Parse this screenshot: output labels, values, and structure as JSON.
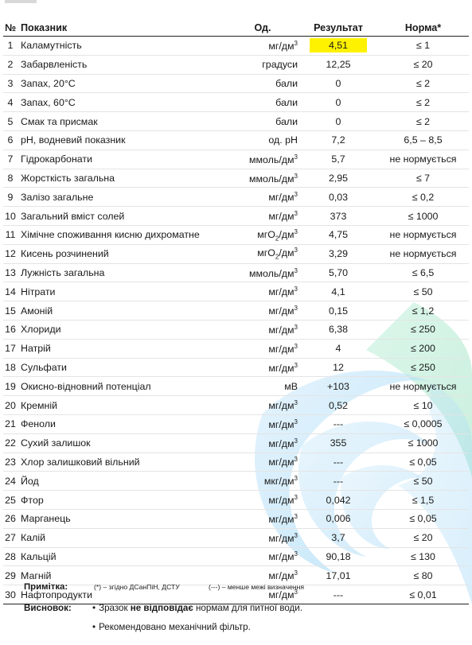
{
  "headers": {
    "no": "№",
    "name": "Показник",
    "unit": "Од.",
    "result": "Результат",
    "norm": "Норма*"
  },
  "rows": [
    {
      "no": "1",
      "name": "Каламутність",
      "unit": "мг/дм",
      "sup": "3",
      "sub": "",
      "result": "4,51",
      "norm": "≤ 1",
      "flag": true
    },
    {
      "no": "2",
      "name": "Забарвленість",
      "unit": "градуси",
      "sup": "",
      "sub": "",
      "result": "12,25",
      "norm": "≤ 20"
    },
    {
      "no": "3",
      "name": "Запах, 20°С",
      "unit": "бали",
      "sup": "",
      "sub": "",
      "result": "0",
      "norm": "≤ 2"
    },
    {
      "no": "4",
      "name": "Запах, 60°С",
      "unit": "бали",
      "sup": "",
      "sub": "",
      "result": "0",
      "norm": "≤ 2"
    },
    {
      "no": "5",
      "name": "Смак та присмак",
      "unit": "бали",
      "sup": "",
      "sub": "",
      "result": "0",
      "norm": "≤ 2"
    },
    {
      "no": "6",
      "name": "pH, водневий показник",
      "unit": "од. pH",
      "sup": "",
      "sub": "",
      "result": "7,2",
      "norm": "6,5 – 8,5"
    },
    {
      "no": "7",
      "name": "Гідрокарбонати",
      "unit": "ммоль/дм",
      "sup": "3",
      "sub": "",
      "result": "5,7",
      "norm": "не нормується"
    },
    {
      "no": "8",
      "name": "Жорсткість загальна",
      "unit": "ммоль/дм",
      "sup": "3",
      "sub": "",
      "result": "2,95",
      "norm": "≤ 7"
    },
    {
      "no": "9",
      "name": "Залізо загальне",
      "unit": "мг/дм",
      "sup": "3",
      "sub": "",
      "result": "0,03",
      "norm": "≤ 0,2"
    },
    {
      "no": "10",
      "name": "Загальний вміст солей",
      "unit": "мг/дм",
      "sup": "3",
      "sub": "",
      "result": "373",
      "norm": "≤ 1000"
    },
    {
      "no": "11",
      "name": "Хімічне споживання кисню дихроматне",
      "unit": "мгО",
      "sup": "",
      "sub": "2",
      "unit_tail": "/дм",
      "sup2": "3",
      "result": "4,75",
      "norm": "не нормується"
    },
    {
      "no": "12",
      "name": "Кисень розчинений",
      "unit": "мгО",
      "sup": "",
      "sub": "2",
      "unit_tail": "/дм",
      "sup2": "3",
      "result": "3,29",
      "norm": "не нормується"
    },
    {
      "no": "13",
      "name": "Лужність загальна",
      "unit": "ммоль/дм",
      "sup": "3",
      "sub": "",
      "result": "5,70",
      "norm": "≤ 6,5"
    },
    {
      "no": "14",
      "name": "Нітрати",
      "unit": "мг/дм",
      "sup": "3",
      "sub": "",
      "result": "4,1",
      "norm": "≤ 50"
    },
    {
      "no": "15",
      "name": "Амоній",
      "unit": "мг/дм",
      "sup": "3",
      "sub": "",
      "result": "0,15",
      "norm": "≤ 1,2"
    },
    {
      "no": "16",
      "name": "Хлориди",
      "unit": "мг/дм",
      "sup": "3",
      "sub": "",
      "result": "6,38",
      "norm": "≤ 250"
    },
    {
      "no": "17",
      "name": "Натрій",
      "unit": "мг/дм",
      "sup": "3",
      "sub": "",
      "result": "4",
      "norm": "≤ 200"
    },
    {
      "no": "18",
      "name": "Сульфати",
      "unit": "мг/дм",
      "sup": "3",
      "sub": "",
      "result": "12",
      "norm": "≤ 250"
    },
    {
      "no": "19",
      "name": "Окисно-відновний потенціал",
      "unit": "мВ",
      "sup": "",
      "sub": "",
      "result": "+103",
      "norm": "не нормується"
    },
    {
      "no": "20",
      "name": "Кремній",
      "unit": "мг/дм",
      "sup": "3",
      "sub": "",
      "result": "0,52",
      "norm": "≤ 10"
    },
    {
      "no": "21",
      "name": "Феноли",
      "unit": "мг/дм",
      "sup": "3",
      "sub": "",
      "result": "---",
      "norm": "≤ 0,0005"
    },
    {
      "no": "22",
      "name": "Сухий залишок",
      "unit": "мг/дм",
      "sup": "3",
      "sub": "",
      "result": "355",
      "norm": "≤ 1000"
    },
    {
      "no": "23",
      "name": "Хлор залишковий вільний",
      "unit": "мг/дм",
      "sup": "3",
      "sub": "",
      "result": "---",
      "norm": "≤ 0,05"
    },
    {
      "no": "24",
      "name": "Йод",
      "unit": "мкг/дм",
      "sup": "3",
      "sub": "",
      "result": "---",
      "norm": "≤ 50"
    },
    {
      "no": "25",
      "name": "Фтор",
      "unit": "мг/дм",
      "sup": "3",
      "sub": "",
      "result": "0,042",
      "norm": "≤ 1,5"
    },
    {
      "no": "26",
      "name": "Марганець",
      "unit": "мг/дм",
      "sup": "3",
      "sub": "",
      "result": "0,006",
      "norm": "≤ 0,05"
    },
    {
      "no": "27",
      "name": "Калій",
      "unit": "мг/дм",
      "sup": "3",
      "sub": "",
      "result": "3,7",
      "norm": "≤ 20"
    },
    {
      "no": "28",
      "name": "Кальцій",
      "unit": "мг/дм",
      "sup": "3",
      "sub": "",
      "result": "90,18",
      "norm": "≤ 130"
    },
    {
      "no": "29",
      "name": "Магній",
      "unit": "мг/дм",
      "sup": "3",
      "sub": "",
      "result": "17,01",
      "norm": "≤ 80"
    },
    {
      "no": "30",
      "name": "Нафтопродукти",
      "unit": "мг/дм",
      "sup": "3",
      "sub": "",
      "result": "---",
      "norm": "≤ 0,01"
    }
  ],
  "note": {
    "label": "Примітка:",
    "text1": "(*) – згідно ДСанПіН, ДСТУ",
    "text2": "(---) – менше межі визначення"
  },
  "conclusion": {
    "label": "Висновок:",
    "bullet": "•",
    "line1_pre": "Зразок ",
    "line1_bold": "не відповідає",
    "line1_post": " нормам для питної води.",
    "line2": "Рекомендовано механічний фільтр."
  },
  "colors": {
    "highlight": "#fff200",
    "watermark_blue": "#7ec8f2",
    "watermark_green": "#8fd9b6"
  }
}
